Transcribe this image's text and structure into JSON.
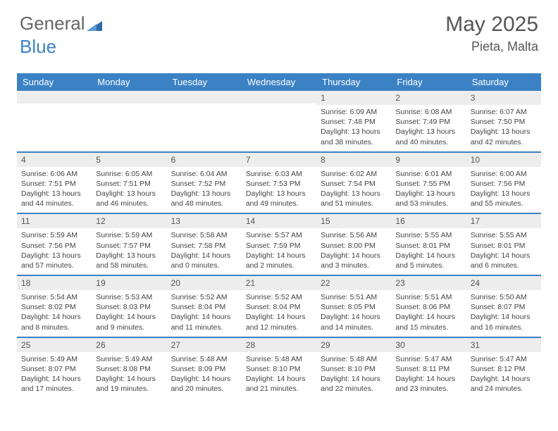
{
  "logo": {
    "part1": "General",
    "part2": "Blue"
  },
  "title": "May 2025",
  "location": "Pieta, Malta",
  "colors": {
    "header_bg": "#3b82c4",
    "daynum_bg": "#ededed",
    "text": "#555555",
    "border": "#3b82c4"
  },
  "day_names": [
    "Sunday",
    "Monday",
    "Tuesday",
    "Wednesday",
    "Thursday",
    "Friday",
    "Saturday"
  ],
  "weeks": [
    [
      {
        "n": "",
        "sr": "",
        "ss": "",
        "dl": ""
      },
      {
        "n": "",
        "sr": "",
        "ss": "",
        "dl": ""
      },
      {
        "n": "",
        "sr": "",
        "ss": "",
        "dl": ""
      },
      {
        "n": "",
        "sr": "",
        "ss": "",
        "dl": ""
      },
      {
        "n": "1",
        "sr": "Sunrise: 6:09 AM",
        "ss": "Sunset: 7:48 PM",
        "dl": "Daylight: 13 hours and 38 minutes."
      },
      {
        "n": "2",
        "sr": "Sunrise: 6:08 AM",
        "ss": "Sunset: 7:49 PM",
        "dl": "Daylight: 13 hours and 40 minutes."
      },
      {
        "n": "3",
        "sr": "Sunrise: 6:07 AM",
        "ss": "Sunset: 7:50 PM",
        "dl": "Daylight: 13 hours and 42 minutes."
      }
    ],
    [
      {
        "n": "4",
        "sr": "Sunrise: 6:06 AM",
        "ss": "Sunset: 7:51 PM",
        "dl": "Daylight: 13 hours and 44 minutes."
      },
      {
        "n": "5",
        "sr": "Sunrise: 6:05 AM",
        "ss": "Sunset: 7:51 PM",
        "dl": "Daylight: 13 hours and 46 minutes."
      },
      {
        "n": "6",
        "sr": "Sunrise: 6:04 AM",
        "ss": "Sunset: 7:52 PM",
        "dl": "Daylight: 13 hours and 48 minutes."
      },
      {
        "n": "7",
        "sr": "Sunrise: 6:03 AM",
        "ss": "Sunset: 7:53 PM",
        "dl": "Daylight: 13 hours and 49 minutes."
      },
      {
        "n": "8",
        "sr": "Sunrise: 6:02 AM",
        "ss": "Sunset: 7:54 PM",
        "dl": "Daylight: 13 hours and 51 minutes."
      },
      {
        "n": "9",
        "sr": "Sunrise: 6:01 AM",
        "ss": "Sunset: 7:55 PM",
        "dl": "Daylight: 13 hours and 53 minutes."
      },
      {
        "n": "10",
        "sr": "Sunrise: 6:00 AM",
        "ss": "Sunset: 7:56 PM",
        "dl": "Daylight: 13 hours and 55 minutes."
      }
    ],
    [
      {
        "n": "11",
        "sr": "Sunrise: 5:59 AM",
        "ss": "Sunset: 7:56 PM",
        "dl": "Daylight: 13 hours and 57 minutes."
      },
      {
        "n": "12",
        "sr": "Sunrise: 5:59 AM",
        "ss": "Sunset: 7:57 PM",
        "dl": "Daylight: 13 hours and 58 minutes."
      },
      {
        "n": "13",
        "sr": "Sunrise: 5:58 AM",
        "ss": "Sunset: 7:58 PM",
        "dl": "Daylight: 14 hours and 0 minutes."
      },
      {
        "n": "14",
        "sr": "Sunrise: 5:57 AM",
        "ss": "Sunset: 7:59 PM",
        "dl": "Daylight: 14 hours and 2 minutes."
      },
      {
        "n": "15",
        "sr": "Sunrise: 5:56 AM",
        "ss": "Sunset: 8:00 PM",
        "dl": "Daylight: 14 hours and 3 minutes."
      },
      {
        "n": "16",
        "sr": "Sunrise: 5:55 AM",
        "ss": "Sunset: 8:01 PM",
        "dl": "Daylight: 14 hours and 5 minutes."
      },
      {
        "n": "17",
        "sr": "Sunrise: 5:55 AM",
        "ss": "Sunset: 8:01 PM",
        "dl": "Daylight: 14 hours and 6 minutes."
      }
    ],
    [
      {
        "n": "18",
        "sr": "Sunrise: 5:54 AM",
        "ss": "Sunset: 8:02 PM",
        "dl": "Daylight: 14 hours and 8 minutes."
      },
      {
        "n": "19",
        "sr": "Sunrise: 5:53 AM",
        "ss": "Sunset: 8:03 PM",
        "dl": "Daylight: 14 hours and 9 minutes."
      },
      {
        "n": "20",
        "sr": "Sunrise: 5:52 AM",
        "ss": "Sunset: 8:04 PM",
        "dl": "Daylight: 14 hours and 11 minutes."
      },
      {
        "n": "21",
        "sr": "Sunrise: 5:52 AM",
        "ss": "Sunset: 8:04 PM",
        "dl": "Daylight: 14 hours and 12 minutes."
      },
      {
        "n": "22",
        "sr": "Sunrise: 5:51 AM",
        "ss": "Sunset: 8:05 PM",
        "dl": "Daylight: 14 hours and 14 minutes."
      },
      {
        "n": "23",
        "sr": "Sunrise: 5:51 AM",
        "ss": "Sunset: 8:06 PM",
        "dl": "Daylight: 14 hours and 15 minutes."
      },
      {
        "n": "24",
        "sr": "Sunrise: 5:50 AM",
        "ss": "Sunset: 8:07 PM",
        "dl": "Daylight: 14 hours and 16 minutes."
      }
    ],
    [
      {
        "n": "25",
        "sr": "Sunrise: 5:49 AM",
        "ss": "Sunset: 8:07 PM",
        "dl": "Daylight: 14 hours and 17 minutes."
      },
      {
        "n": "26",
        "sr": "Sunrise: 5:49 AM",
        "ss": "Sunset: 8:08 PM",
        "dl": "Daylight: 14 hours and 19 minutes."
      },
      {
        "n": "27",
        "sr": "Sunrise: 5:48 AM",
        "ss": "Sunset: 8:09 PM",
        "dl": "Daylight: 14 hours and 20 minutes."
      },
      {
        "n": "28",
        "sr": "Sunrise: 5:48 AM",
        "ss": "Sunset: 8:10 PM",
        "dl": "Daylight: 14 hours and 21 minutes."
      },
      {
        "n": "29",
        "sr": "Sunrise: 5:48 AM",
        "ss": "Sunset: 8:10 PM",
        "dl": "Daylight: 14 hours and 22 minutes."
      },
      {
        "n": "30",
        "sr": "Sunrise: 5:47 AM",
        "ss": "Sunset: 8:11 PM",
        "dl": "Daylight: 14 hours and 23 minutes."
      },
      {
        "n": "31",
        "sr": "Sunrise: 5:47 AM",
        "ss": "Sunset: 8:12 PM",
        "dl": "Daylight: 14 hours and 24 minutes."
      }
    ]
  ]
}
